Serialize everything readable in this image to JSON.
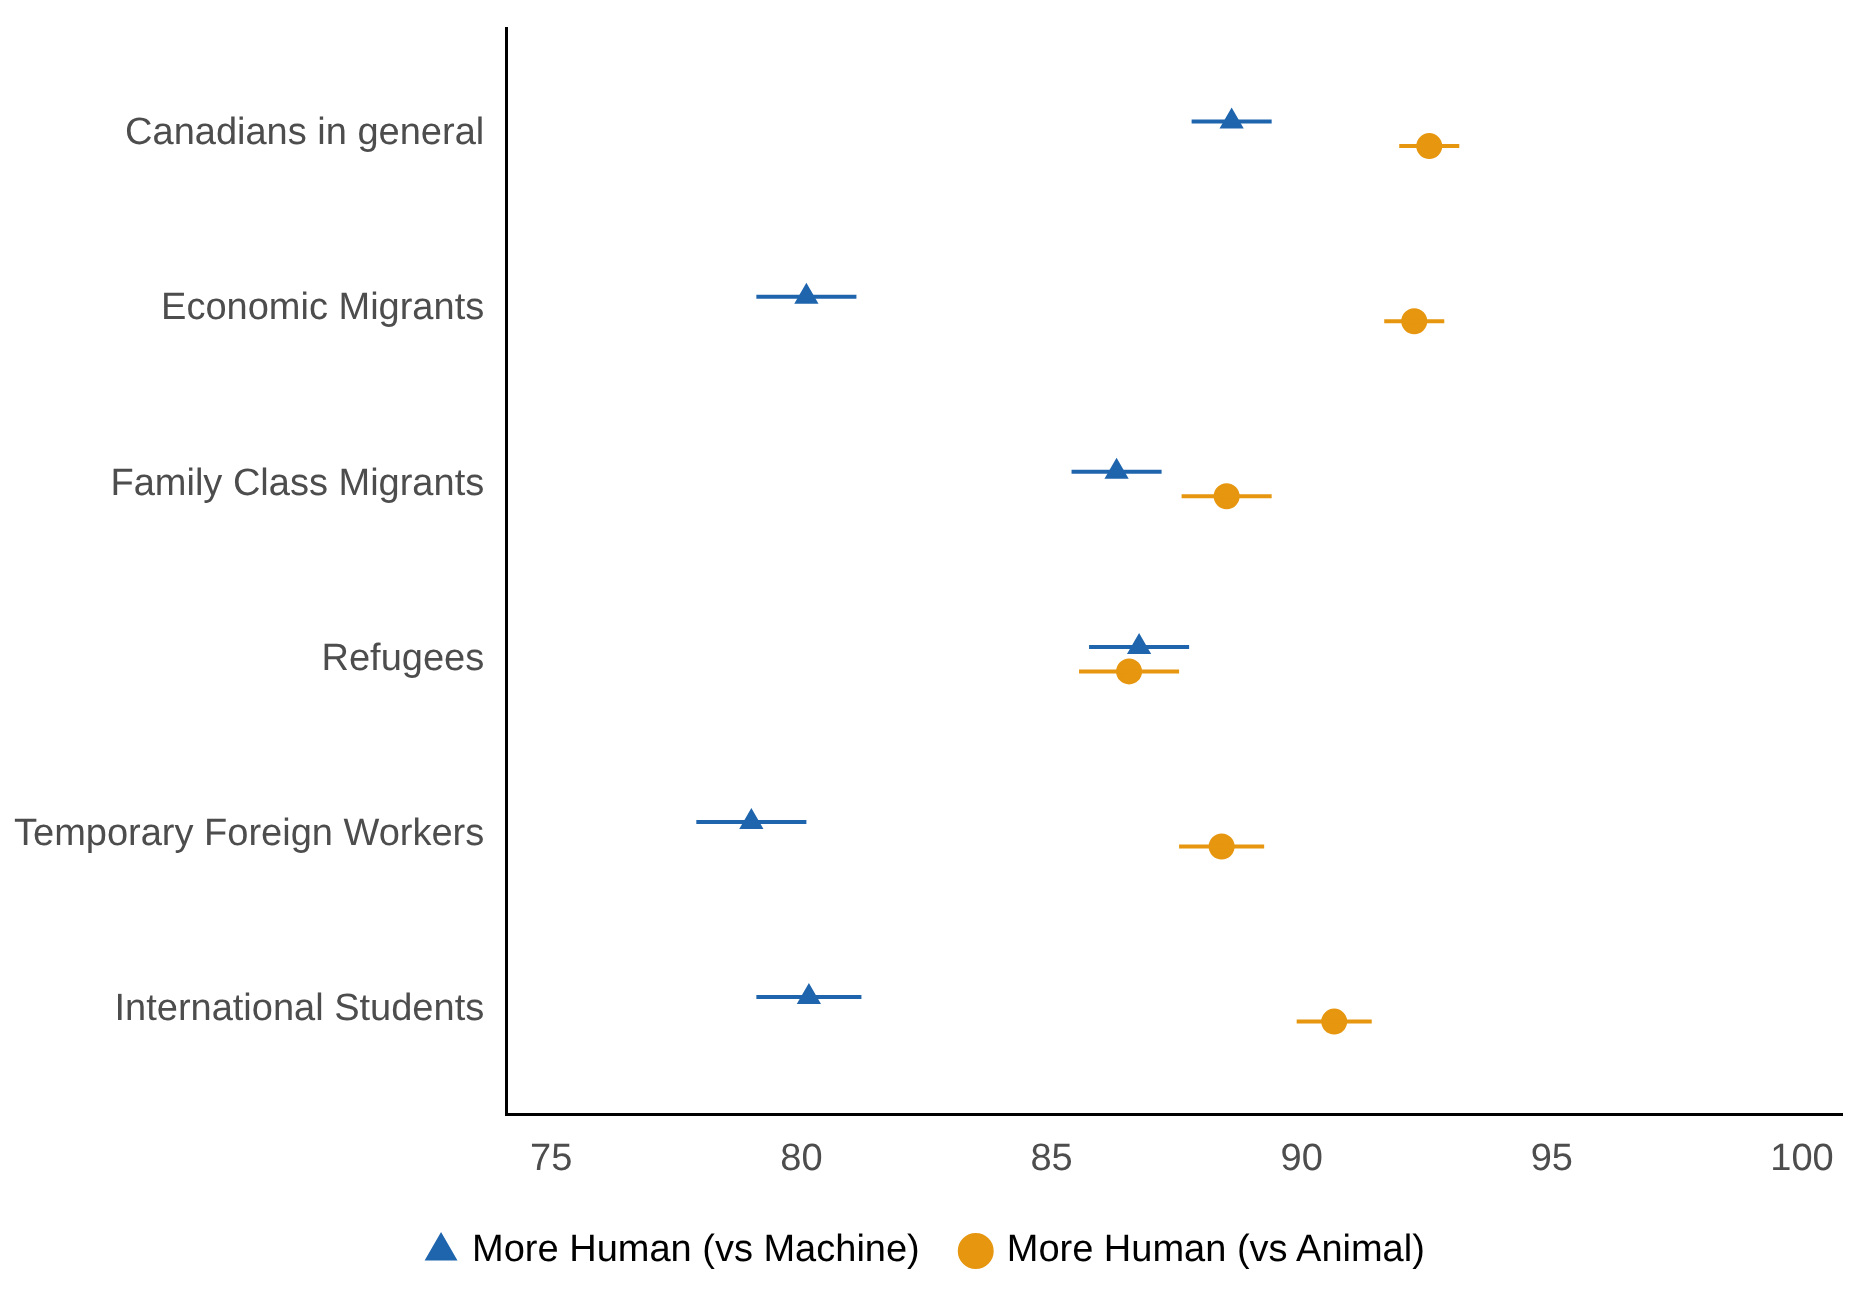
{
  "chart_data": {
    "type": "scatter",
    "orientation": "horizontal",
    "categories": [
      "Canadians in general",
      "Economic Migrants",
      "Family Class Migrants",
      "Refugees",
      "Temporary Foreign Workers",
      "International Students"
    ],
    "xlim": [
      74.1,
      100.8
    ],
    "xticks": [
      75,
      80,
      85,
      90,
      95,
      100
    ],
    "grid": false,
    "legend": "bottom",
    "series": [
      {
        "name": "More Human (vs Machine)",
        "color": "#1f65ad",
        "marker": "triangle",
        "values": [
          88.6,
          80.1,
          86.3,
          86.75,
          79.0,
          80.15
        ],
        "errors": [
          0.8,
          1.0,
          0.9,
          1.0,
          1.1,
          1.05
        ]
      },
      {
        "name": "More Human (vs Animal)",
        "color": "#e6960f",
        "marker": "circle",
        "values": [
          92.55,
          92.25,
          88.5,
          86.55,
          88.4,
          90.65
        ],
        "errors": [
          0.6,
          0.6,
          0.9,
          1.0,
          0.85,
          0.75
        ]
      }
    ]
  }
}
